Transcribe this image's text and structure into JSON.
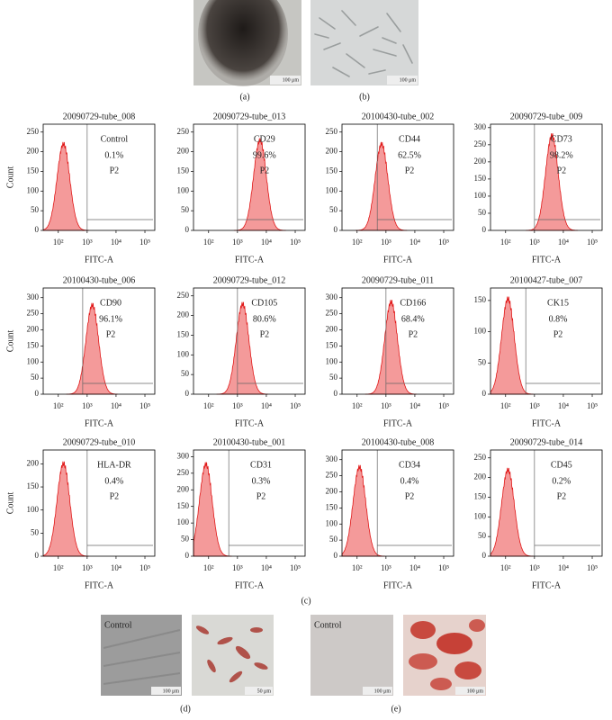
{
  "panel_labels": {
    "a": "(a)",
    "b": "(b)",
    "c": "(c)",
    "d": "(d)",
    "e": "(e)"
  },
  "photos": [
    {
      "scale": "100 μm"
    },
    {
      "scale": "100 μm"
    },
    {
      "caption": "Control",
      "scale": "100 μm"
    },
    {
      "scale": "50 μm"
    },
    {
      "caption": "Control",
      "scale": "100 μm"
    },
    {
      "scale": "100 μm"
    }
  ],
  "axes": {
    "y_label": "Count",
    "x_label": "FITC-A",
    "xlim": [
      30,
      220000
    ],
    "xticks": [
      {
        "value": 100,
        "label": "10²"
      },
      {
        "value": 1000,
        "label": "10³"
      },
      {
        "value": 10000,
        "label": "10⁴"
      },
      {
        "value": 100000,
        "label": "10⁵"
      }
    ]
  },
  "histograms": [
    {
      "title": "20090729-tube_008",
      "marker": "Control",
      "percent": "0.1%",
      "gate": "P2",
      "ylim": [
        0,
        270
      ],
      "yticks": [
        0,
        50,
        100,
        150,
        200,
        250
      ],
      "peak_x": 150,
      "peak_count": 230,
      "gate_x": 1000
    },
    {
      "title": "20090729-tube_013",
      "marker": "CD29",
      "percent": "99.6%",
      "gate": "P2",
      "ylim": [
        0,
        270
      ],
      "yticks": [
        0,
        50,
        100,
        150,
        200,
        250
      ],
      "peak_x": 6000,
      "peak_count": 240,
      "gate_x": 1000
    },
    {
      "title": "20100430-tube_002",
      "marker": "CD44",
      "percent": "62.5%",
      "gate": "P2",
      "ylim": [
        0,
        270
      ],
      "yticks": [
        0,
        50,
        100,
        150,
        200,
        250
      ],
      "peak_x": 700,
      "peak_count": 230,
      "gate_x": 500
    },
    {
      "title": "20090729-tube_009",
      "marker": "CD73",
      "percent": "98.2%",
      "gate": "P2",
      "ylim": [
        0,
        310
      ],
      "yticks": [
        0,
        50,
        100,
        150,
        200,
        250,
        300
      ],
      "peak_x": 4000,
      "peak_count": 290,
      "gate_x": 1000
    },
    {
      "title": "20100430-tube_006",
      "marker": "CD90",
      "percent": "96.1%",
      "gate": "P2",
      "ylim": [
        0,
        330
      ],
      "yticks": [
        0,
        50,
        100,
        150,
        200,
        250,
        300
      ],
      "peak_x": 1500,
      "peak_count": 290,
      "gate_x": 700
    },
    {
      "title": "20090729-tube_012",
      "marker": "CD105",
      "percent": "80.6%",
      "gate": "P2",
      "ylim": [
        0,
        270
      ],
      "yticks": [
        0,
        50,
        100,
        150,
        200,
        250
      ],
      "peak_x": 1500,
      "peak_count": 240,
      "gate_x": 1000
    },
    {
      "title": "20090729-tube_011",
      "marker": "CD166",
      "percent": "68.4%",
      "gate": "P2",
      "ylim": [
        0,
        330
      ],
      "yticks": [
        0,
        50,
        100,
        150,
        200,
        250,
        300
      ],
      "peak_x": 1500,
      "peak_count": 300,
      "gate_x": 1000
    },
    {
      "title": "20100427-tube_007",
      "marker": "CK15",
      "percent": "0.8%",
      "gate": "P2",
      "ylim": [
        0,
        170
      ],
      "yticks": [
        0,
        50,
        100,
        150
      ],
      "peak_x": 120,
      "peak_count": 160,
      "gate_x": 500
    },
    {
      "title": "20090729-tube_010",
      "marker": "HLA-DR",
      "percent": "0.4%",
      "gate": "P2",
      "ylim": [
        0,
        230
      ],
      "yticks": [
        0,
        50,
        100,
        150,
        200
      ],
      "peak_x": 150,
      "peak_count": 210,
      "gate_x": 1000
    },
    {
      "title": "20100430-tube_001",
      "marker": "CD31",
      "percent": "0.3%",
      "gate": "P2",
      "ylim": [
        0,
        320
      ],
      "yticks": [
        0,
        50,
        100,
        150,
        200,
        250,
        300
      ],
      "peak_x": 80,
      "peak_count": 290,
      "gate_x": 500
    },
    {
      "title": "20100430-tube_008",
      "marker": "CD34",
      "percent": "0.4%",
      "gate": "P2",
      "ylim": [
        0,
        330
      ],
      "yticks": [
        0,
        50,
        100,
        150,
        200,
        250,
        300
      ],
      "peak_x": 120,
      "peak_count": 290,
      "gate_x": 500
    },
    {
      "title": "20090729-tube_014",
      "marker": "CD45",
      "percent": "0.2%",
      "gate": "P2",
      "ylim": [
        0,
        270
      ],
      "yticks": [
        0,
        50,
        100,
        150,
        200,
        250
      ],
      "peak_x": 120,
      "peak_count": 230,
      "gate_x": 1000
    }
  ]
}
